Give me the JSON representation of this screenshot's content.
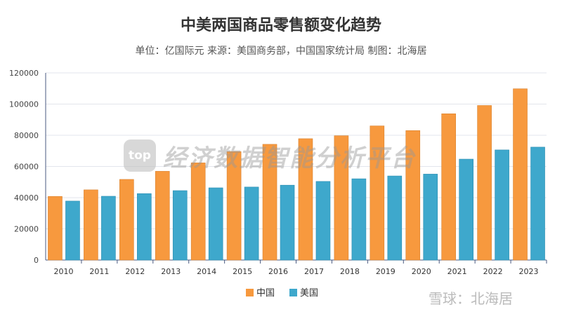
{
  "chart_data": {
    "type": "bar",
    "title": "中美两国商品零售额变化趋势",
    "subtitle": "单位：亿国际元 来源：美国商务部，中国国家统计局 制图：北海居",
    "categories": [
      "2010",
      "2011",
      "2012",
      "2013",
      "2014",
      "2015",
      "2016",
      "2017",
      "2018",
      "2019",
      "2020",
      "2021",
      "2022",
      "2023"
    ],
    "series": [
      {
        "name": "中国",
        "color": "#f7993e",
        "values": [
          40800,
          45000,
          51700,
          56900,
          62300,
          69500,
          74200,
          77800,
          79700,
          86000,
          83000,
          93800,
          99100,
          109800
        ]
      },
      {
        "name": "美国",
        "color": "#3ea8cc",
        "values": [
          37800,
          40900,
          42600,
          44500,
          46300,
          46800,
          48000,
          50400,
          52100,
          53900,
          55100,
          64700,
          70600,
          72400
        ]
      }
    ],
    "ylim": [
      0,
      120000
    ],
    "yticks": [
      0,
      20000,
      40000,
      60000,
      80000,
      100000,
      120000
    ],
    "grid": true,
    "legend": "bottom"
  },
  "watermark": {
    "logo": "top",
    "text": "经济数据智能分析平台",
    "source": "雪球：北海居"
  }
}
